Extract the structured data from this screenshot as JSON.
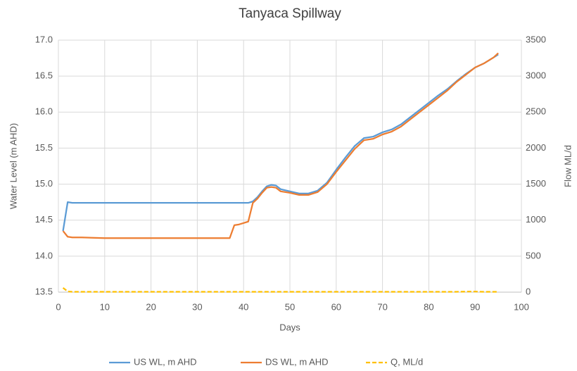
{
  "chart_data": {
    "type": "line",
    "title": "Tanyaca Spillway",
    "x_label": "Days",
    "y_label": "Water Level (m AHD)",
    "y2_label": "Flow ML/d",
    "x": [
      1,
      2,
      3,
      5,
      10,
      20,
      30,
      36,
      37,
      38,
      39,
      40,
      41,
      42,
      43,
      44,
      45,
      46,
      47,
      48,
      50,
      52,
      54,
      56,
      58,
      60,
      62,
      64,
      66,
      68,
      70,
      72,
      74,
      76,
      78,
      80,
      82,
      84,
      86,
      88,
      90,
      92,
      94,
      95
    ],
    "series": [
      {
        "name": "US WL, m AHD",
        "color": "#5b9bd5",
        "values": [
          14.35,
          14.75,
          14.74,
          14.74,
          14.74,
          14.74,
          14.74,
          14.74,
          14.74,
          14.74,
          14.74,
          14.74,
          14.74,
          14.76,
          14.82,
          14.9,
          14.97,
          14.99,
          14.98,
          14.93,
          14.9,
          14.87,
          14.87,
          14.91,
          15.02,
          15.2,
          15.37,
          15.53,
          15.64,
          15.66,
          15.72,
          15.76,
          15.83,
          15.93,
          16.03,
          16.13,
          16.23,
          16.32,
          16.43,
          16.53,
          16.62,
          16.68,
          16.76,
          16.8
        ]
      },
      {
        "name": "DS WL, m AHD",
        "color": "#ed7d31",
        "values": [
          14.35,
          14.27,
          14.26,
          14.26,
          14.25,
          14.25,
          14.25,
          14.25,
          14.25,
          14.43,
          14.44,
          14.46,
          14.48,
          14.74,
          14.8,
          14.88,
          14.95,
          14.96,
          14.95,
          14.9,
          14.88,
          14.85,
          14.85,
          14.89,
          15.0,
          15.17,
          15.33,
          15.49,
          15.61,
          15.63,
          15.69,
          15.73,
          15.8,
          15.9,
          16.0,
          16.1,
          16.2,
          16.3,
          16.42,
          16.52,
          16.62,
          16.68,
          16.76,
          16.82
        ]
      },
      {
        "name": "Q, ML/d",
        "color": "#ffc000",
        "dashed": true,
        "axis": "y2",
        "values": [
          60,
          10,
          5,
          5,
          5,
          5,
          5,
          5,
          5,
          5,
          5,
          5,
          5,
          5,
          5,
          5,
          5,
          5,
          5,
          5,
          5,
          5,
          5,
          5,
          5,
          5,
          5,
          5,
          5,
          5,
          5,
          5,
          5,
          5,
          5,
          5,
          5,
          5,
          5,
          8,
          8,
          5,
          5,
          5
        ]
      }
    ],
    "xlim": [
      0,
      100
    ],
    "xticks": [
      0,
      10,
      20,
      30,
      40,
      50,
      60,
      70,
      80,
      90,
      100
    ],
    "ylim": [
      13.5,
      17
    ],
    "yticks": [
      13.5,
      {
        "value": 14,
        "label": "14.0"
      },
      14.5,
      {
        "value": 15,
        "label": "15.0"
      },
      15.5,
      {
        "value": 16,
        "label": "16.0"
      },
      16.5,
      {
        "value": 17,
        "label": "17.0"
      }
    ],
    "y2lim": [
      0,
      3500
    ],
    "y2ticks": [
      0,
      500,
      1000,
      1500,
      2000,
      2500,
      3000,
      3500
    ],
    "grid": true,
    "legend": "bottom"
  }
}
